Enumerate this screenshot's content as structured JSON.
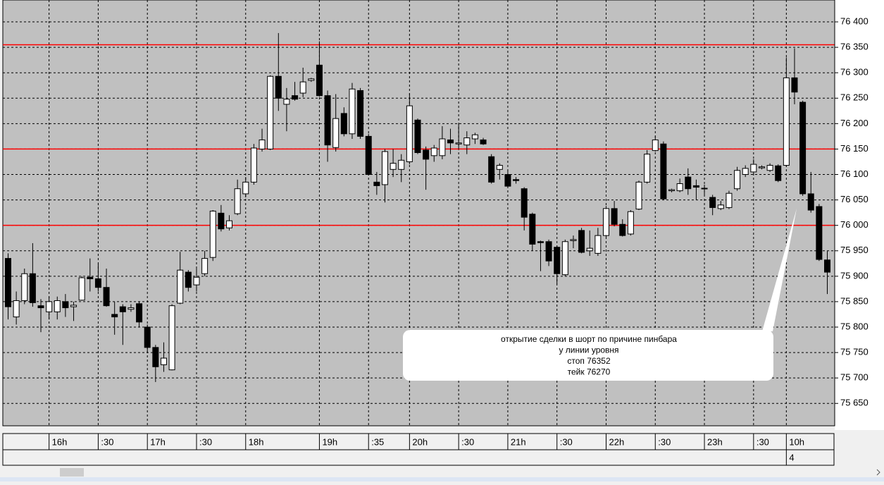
{
  "chart_data": {
    "type": "candlestick",
    "categories": [
      null,
      null,
      null,
      null,
      null,
      "16h",
      null,
      null,
      null,
      null,
      null,
      ":30",
      null,
      null,
      null,
      null,
      null,
      "17h",
      null,
      null,
      null,
      null,
      null,
      ":30",
      null,
      null,
      null,
      null,
      null,
      "18h",
      null,
      null,
      null,
      null,
      null,
      null,
      null,
      null,
      "19h",
      null,
      null,
      null,
      null,
      null,
      ":35",
      null,
      null,
      null,
      null,
      "20h",
      null,
      null,
      null,
      null,
      null,
      ":30",
      null,
      null,
      null,
      null,
      null,
      "21h",
      null,
      null,
      null,
      null,
      null,
      ":30",
      null,
      null,
      null,
      null,
      null,
      "22h",
      null,
      null,
      null,
      null,
      null,
      ":30",
      null,
      null,
      null,
      null,
      null,
      "23h",
      null,
      null,
      null,
      null,
      null,
      ":30",
      null,
      null,
      null,
      "10h",
      null,
      null,
      null,
      null,
      null
    ],
    "dates": [
      null,
      null,
      null,
      null,
      null,
      null,
      null,
      null,
      null,
      null,
      null,
      null,
      null,
      null,
      null,
      null,
      null,
      null,
      null,
      null,
      null,
      null,
      null,
      null,
      null,
      null,
      null,
      null,
      null,
      null,
      null,
      null,
      null,
      null,
      null,
      null,
      null,
      null,
      null,
      null,
      null,
      null,
      null,
      null,
      null,
      null,
      null,
      null,
      null,
      null,
      null,
      null,
      null,
      null,
      null,
      null,
      null,
      null,
      null,
      null,
      null,
      null,
      null,
      null,
      null,
      null,
      null,
      null,
      null,
      null,
      null,
      null,
      null,
      null,
      null,
      null,
      null,
      null,
      null,
      null,
      null,
      null,
      null,
      null,
      null,
      null,
      null,
      null,
      null,
      null,
      null,
      null,
      null,
      null,
      null,
      "4",
      null,
      null,
      null,
      null,
      null
    ],
    "open": [
      75935,
      75820,
      75852,
      75905,
      75842,
      75830,
      75830,
      75850,
      75840,
      75853,
      75898,
      75895,
      75878,
      75825,
      75840,
      75835,
      75846,
      75800,
      75760,
      75726,
      75716,
      75847,
      75908,
      75883,
      75905,
      75937,
      76024,
      75995,
      76023,
      76062,
      76085,
      76150,
      76150,
      76293,
      76238,
      76255,
      76260,
      76285,
      76315,
      76255,
      76153,
      76220,
      76180,
      76265,
      76175,
      76085,
      76080,
      76110,
      76110,
      76125,
      76207,
      76148,
      76137,
      76137,
      76168,
      76160,
      76158,
      76170,
      76168,
      76135,
      76110,
      76100,
      76090,
      76072,
      76022,
      75968,
      75968,
      75957,
      75903,
      75970,
      75990,
      75950,
      75945,
      75980,
      76033,
      76002,
      75983,
      76032,
      76085,
      76147,
      76160,
      76068,
      76068,
      76095,
      76078,
      76073,
      76055,
      76033,
      76035,
      76072,
      76100,
      76105,
      76113,
      76108,
      76117,
      76118,
      76290,
      76242,
      76062,
      76037,
      75932
    ],
    "high": [
      75945,
      75870,
      75915,
      75965,
      75855,
      75860,
      75860,
      75865,
      75850,
      75900,
      75935,
      75925,
      75915,
      75850,
      75845,
      75845,
      75850,
      75805,
      75765,
      75770,
      75845,
      75948,
      75912,
      75918,
      75950,
      76030,
      76040,
      76020,
      76090,
      76095,
      76160,
      76190,
      76295,
      76378,
      76270,
      76282,
      76310,
      76290,
      76362,
      76265,
      76258,
      76232,
      76280,
      76270,
      76180,
      76105,
      76150,
      76150,
      76140,
      76260,
      76210,
      76155,
      76158,
      76195,
      76190,
      76200,
      76185,
      76182,
      76172,
      76140,
      76122,
      76108,
      76095,
      76075,
      76025,
      75970,
      75972,
      75960,
      75972,
      75980,
      75995,
      75990,
      75995,
      76038,
      76048,
      76012,
      76030,
      76088,
      76148,
      76175,
      76165,
      76072,
      76092,
      76112,
      76090,
      76080,
      76060,
      76048,
      76068,
      76115,
      76118,
      76130,
      76118,
      76122,
      76120,
      76330,
      76348,
      76245,
      76105,
      76042,
      75950
    ],
    "low": [
      75815,
      75805,
      75845,
      75840,
      75790,
      75815,
      75815,
      75820,
      75812,
      75852,
      75870,
      75870,
      75840,
      75785,
      75765,
      75830,
      75800,
      75750,
      75692,
      75712,
      75715,
      75845,
      75870,
      75870,
      75900,
      75930,
      75988,
      75990,
      76020,
      76055,
      76080,
      76145,
      76148,
      76225,
      76185,
      76245,
      76252,
      76282,
      76253,
      76125,
      76145,
      76175,
      76170,
      76170,
      76098,
      76060,
      76045,
      76095,
      76085,
      76120,
      76140,
      76070,
      76125,
      76130,
      76140,
      76150,
      76140,
      76160,
      76158,
      76082,
      76090,
      76075,
      76082,
      75990,
      75950,
      75910,
      75920,
      75885,
      75900,
      75955,
      75945,
      75940,
      75940,
      75975,
      75998,
      75978,
      75980,
      76030,
      76082,
      76145,
      76050,
      76065,
      76065,
      76060,
      76050,
      76060,
      76020,
      76030,
      76032,
      76068,
      76095,
      76100,
      76110,
      76105,
      76085,
      76115,
      76238,
      76058,
      76025,
      75930,
      75865
    ],
    "close": [
      75840,
      75852,
      75905,
      75848,
      75838,
      75850,
      75852,
      75838,
      75843,
      75897,
      75895,
      75878,
      75842,
      75820,
      75830,
      75838,
      75810,
      75760,
      75722,
      75739,
      75842,
      75912,
      75878,
      75898,
      75935,
      76028,
      75993,
      76009,
      76072,
      76085,
      76152,
      76168,
      76293,
      76250,
      76248,
      76248,
      76282,
      76288,
      76255,
      76158,
      76210,
      76180,
      76268,
      76175,
      76100,
      76078,
      76145,
      76122,
      76128,
      76235,
      76143,
      76130,
      76152,
      76170,
      76162,
      76162,
      76172,
      76178,
      76160,
      76085,
      76118,
      76077,
      76088,
      76016,
      75963,
      75966,
      75930,
      75905,
      75968,
      75972,
      75947,
      75955,
      75980,
      76033,
      76002,
      75980,
      76027,
      76085,
      76140,
      76168,
      76052,
      76070,
      76082,
      76072,
      76075,
      76073,
      76035,
      76040,
      76063,
      76108,
      76112,
      76120,
      76115,
      76118,
      76088,
      76290,
      76262,
      76062,
      76030,
      75933,
      75908
    ],
    "up_color": "#ffffff",
    "down_color": "#000000",
    "ylim": [
      75606,
      76443
    ],
    "yticks": [
      {
        "value": 75650,
        "label": "75 650"
      },
      {
        "value": 75700,
        "label": "75 700"
      },
      {
        "value": 75750,
        "label": "75 750"
      },
      {
        "value": 75800,
        "label": "75 800"
      },
      {
        "value": 75850,
        "label": "75 850"
      },
      {
        "value": 75900,
        "label": "75 900"
      },
      {
        "value": 75950,
        "label": "75 950"
      },
      {
        "value": 76000,
        "label": "76 000"
      },
      {
        "value": 76050,
        "label": "76 050"
      },
      {
        "value": 76100,
        "label": "76 100"
      },
      {
        "value": 76150,
        "label": "76 150"
      },
      {
        "value": 76200,
        "label": "76 200"
      },
      {
        "value": 76250,
        "label": "76 250"
      },
      {
        "value": 76300,
        "label": "76 300"
      },
      {
        "value": 76350,
        "label": "76 350"
      },
      {
        "value": 76400,
        "label": "76 400"
      }
    ],
    "grid": true,
    "level_lines": [
      76355,
      76150,
      76000
    ],
    "level_color": "#ff0000",
    "annotation": [
      "открытие сделки в шорт по причине пинбара",
      "у линии уровня",
      "стоп  76352",
      "тейк 76270"
    ]
  }
}
